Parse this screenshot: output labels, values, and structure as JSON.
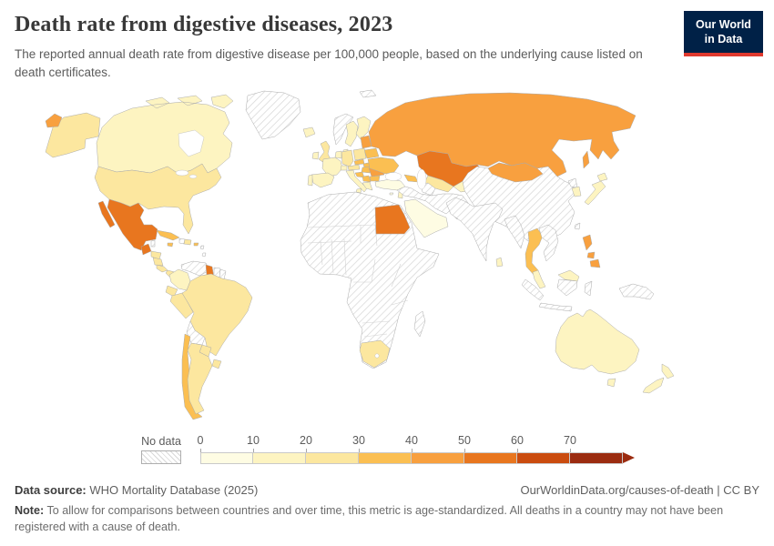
{
  "header": {
    "title": "Death rate from digestive diseases, 2023",
    "subtitle": "The reported annual death rate from digestive disease per 100,000 people, based on the underlying cause listed on death certificates.",
    "logo": {
      "line1": "Our World",
      "line2": "in Data",
      "bg": "#002147",
      "accent": "#e0392e"
    }
  },
  "legend": {
    "no_data_label": "No data",
    "ticks": [
      "0",
      "10",
      "20",
      "30",
      "40",
      "50",
      "60",
      "70"
    ],
    "palette": [
      "#fefce3",
      "#fdf4c1",
      "#fce79f",
      "#fbbf52",
      "#f8a03f",
      "#e8761f",
      "#ca4c0f",
      "#9b2c10"
    ],
    "hatch_line_color": "#d8d8d8",
    "border_color": "#ababab"
  },
  "footer": {
    "source_label": "Data source:",
    "source_text": " WHO Mortality Database (2025)",
    "link": "OurWorldinData.org/causes-of-death | CC BY",
    "note_label": "Note:",
    "note_text": " To allow for comparisons between countries and over time, this metric is age-standardized. All deaths in a country may not have been registered with a cause of death."
  },
  "chart_data": {
    "type": "choropleth",
    "title": "Death rate from digestive diseases, 2023",
    "unit": "deaths per 100,000 people (age-standardized)",
    "year": 2023,
    "color_scale": {
      "bin_edges": [
        0,
        10,
        20,
        30,
        40,
        50,
        60,
        70
      ],
      "open_ended_top": true,
      "bin_size": 10
    },
    "values": {
      "united_states": 26,
      "canada": 13,
      "mexico": 52,
      "guatemala": 50,
      "honduras": 22,
      "nicaragua": 24,
      "costa_rica": 22,
      "panama": 25,
      "cuba": 32,
      "jamaica": 35,
      "dominican_republic": 28,
      "puerto_rico": 30,
      "colombia": 18,
      "guyana": 52,
      "ecuador": 24,
      "peru": 21,
      "brazil": 21,
      "paraguay": 25,
      "uruguay": 22,
      "chile": 31,
      "argentina": 24,
      "iceland": 12,
      "united_kingdom": 24,
      "ireland": 14,
      "sweden": 11,
      "finland": 14,
      "denmark": 15,
      "france": 12,
      "spain": 13,
      "portugal": 14,
      "germany": 22,
      "netherlands": 13,
      "poland": 28,
      "czechia": 31,
      "slovakia": 36,
      "austria": 20,
      "switzerland": 11,
      "italy": 11,
      "croatia": 33,
      "serbia": 31,
      "greece": 13,
      "bulgaria": 31,
      "hungary": 38,
      "romania": 42,
      "moldova": 76,
      "ukraine": 38,
      "belarus": 36,
      "lithuania": 40,
      "russia": 46,
      "kazakhstan": 54,
      "uzbekistan": 25,
      "kyrgyzstan": 15,
      "georgia": 32,
      "turkey": 9,
      "cyprus": 9,
      "israel": 11,
      "saudi_arabia": 7,
      "egypt": 56,
      "south_africa": 26,
      "mongolia": 44,
      "south_korea": 12,
      "japan": 10,
      "sri_lanka": 17,
      "thailand": 30,
      "malaysia": 16,
      "philippines": 42,
      "australia": 11,
      "new_zealand": 13
    },
    "no_data": [
      "greenland",
      "norway",
      "belize",
      "haiti",
      "caribbean_islands",
      "venezuela",
      "suriname",
      "french_guiana",
      "bolivia",
      "most_of_africa",
      "madagascar",
      "turkmenistan",
      "iran",
      "iraq",
      "syria",
      "afghanistan",
      "pakistan",
      "china",
      "india",
      "north_korea",
      "myanmar",
      "vietnam",
      "laos",
      "cambodia",
      "taiwan",
      "indonesia",
      "papua_new_guinea"
    ]
  }
}
